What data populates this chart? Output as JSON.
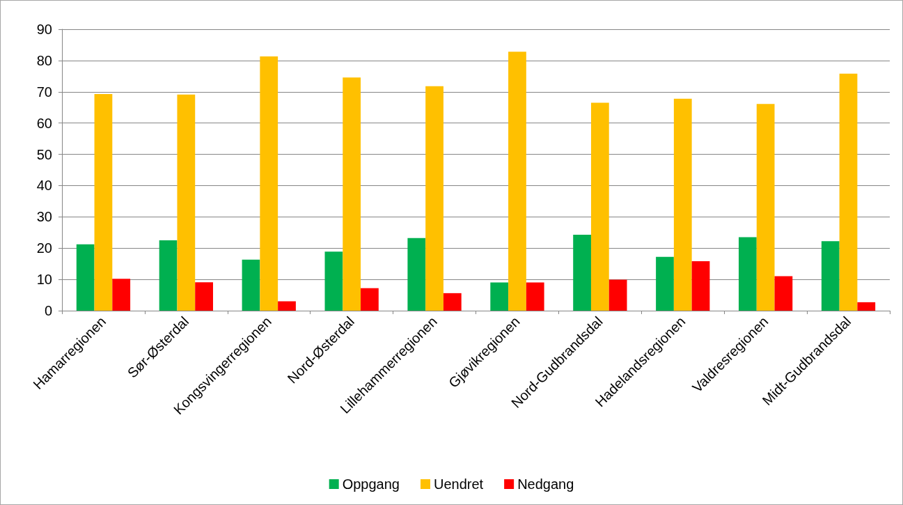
{
  "chart_data": {
    "type": "bar",
    "categories": [
      "Hamarregionen",
      "Sør-Østerdal",
      "Kongsvingerregionen",
      "Nord-Østerdal",
      "Lillehammerregionen",
      "Gjøvikregionen",
      "Nord-Gudbrandsdal",
      "Hadelandsregionen",
      "Valdresregionen",
      "Midt-Gudbrandsdal"
    ],
    "series": [
      {
        "name": "Oppgang",
        "color": "#00b050",
        "values": [
          21.2,
          22.5,
          16.3,
          18.9,
          23.2,
          9.0,
          24.3,
          17.2,
          23.5,
          22.2
        ]
      },
      {
        "name": "Uendret",
        "color": "#ffc000",
        "values": [
          69.3,
          69.1,
          81.3,
          74.6,
          71.8,
          82.8,
          66.5,
          67.8,
          66.1,
          75.8
        ]
      },
      {
        "name": "Nedgang",
        "color": "#ff0000",
        "values": [
          10.2,
          9.1,
          3.0,
          7.2,
          5.6,
          9.0,
          9.9,
          15.8,
          11.0,
          2.7
        ]
      }
    ],
    "ylim": [
      0,
      90
    ],
    "yticks": [
      0,
      10,
      20,
      30,
      40,
      50,
      60,
      70,
      80,
      90
    ],
    "grid": "y",
    "legend": "bottom"
  }
}
